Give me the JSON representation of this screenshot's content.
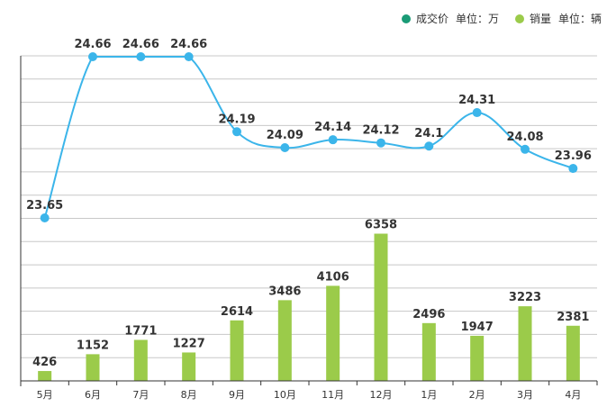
{
  "legend": {
    "price_name": "成交价",
    "price_unit": "单位：万",
    "volume_name": "销量",
    "volume_unit": "单位：辆"
  },
  "colors": {
    "price_dot": "#1a9b76",
    "line": "#3bb5ea",
    "bar": "#9bcb4a"
  },
  "chart_data": {
    "type": "bar+line",
    "categories": [
      "5月",
      "6月",
      "7月",
      "8月",
      "9月",
      "10月",
      "11月",
      "12月",
      "1月",
      "2月",
      "3月",
      "4月"
    ],
    "series": [
      {
        "name": "成交价",
        "unit": "万",
        "type": "line",
        "values": [
          23.65,
          24.66,
          24.66,
          24.66,
          24.19,
          24.09,
          24.14,
          24.12,
          24.1,
          24.31,
          24.08,
          23.96
        ]
      },
      {
        "name": "销量",
        "unit": "辆",
        "type": "bar",
        "values": [
          426,
          1152,
          1771,
          1227,
          2614,
          3486,
          4106,
          6358,
          2496,
          1947,
          3223,
          2381
        ]
      }
    ],
    "price_labels": [
      "23.65",
      "24.66",
      "24.66",
      "24.66",
      "24.19",
      "24.09",
      "24.14",
      "24.12",
      "24.1",
      "24.31",
      "24.08",
      "23.96"
    ],
    "volume_labels": [
      "426",
      "1152",
      "1771",
      "1227",
      "2614",
      "3486",
      "4106",
      "6358",
      "2496",
      "1947",
      "3223",
      "2381"
    ],
    "grid": true
  }
}
